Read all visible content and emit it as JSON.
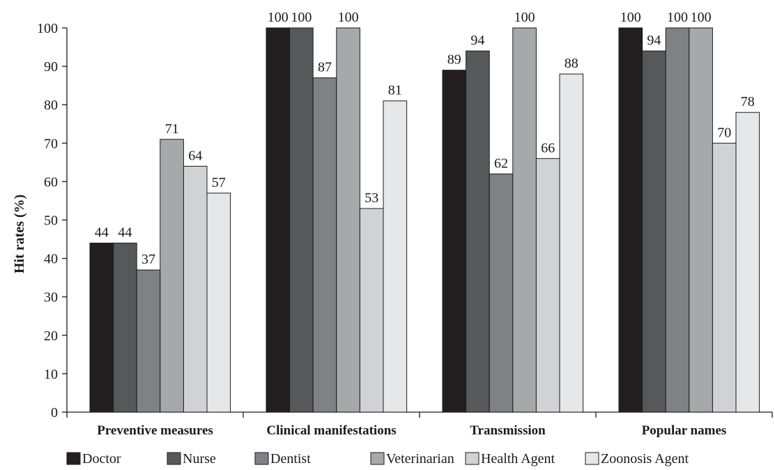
{
  "chart_data": {
    "type": "bar",
    "title": "",
    "xlabel": "",
    "ylabel": "Hit rates  (%)",
    "ylim": [
      0,
      100
    ],
    "yticks": [
      0,
      10,
      20,
      30,
      40,
      50,
      60,
      70,
      80,
      90,
      100
    ],
    "grid": false,
    "legend_position": "bottom",
    "categories": [
      "Preventive measures",
      "Clinical manifestations",
      "Transmission",
      "Popular names"
    ],
    "series": [
      {
        "name": "Doctor",
        "color": "#231f20",
        "values": [
          44,
          100,
          89,
          100
        ]
      },
      {
        "name": "Nurse",
        "color": "#57585a",
        "values": [
          44,
          100,
          94,
          94
        ]
      },
      {
        "name": "Dentist",
        "color": "#808184",
        "values": [
          37,
          87,
          62,
          100
        ]
      },
      {
        "name": "Veterinarian",
        "color": "#a7a8aa",
        "values": [
          71,
          100,
          100,
          100
        ]
      },
      {
        "name": "Health Agent",
        "color": "#d1d2d4",
        "values": [
          64,
          53,
          66,
          70
        ]
      },
      {
        "name": "Zoonosis Agent",
        "color": "#e6e7e8",
        "values": [
          57,
          81,
          88,
          78
        ]
      }
    ]
  }
}
